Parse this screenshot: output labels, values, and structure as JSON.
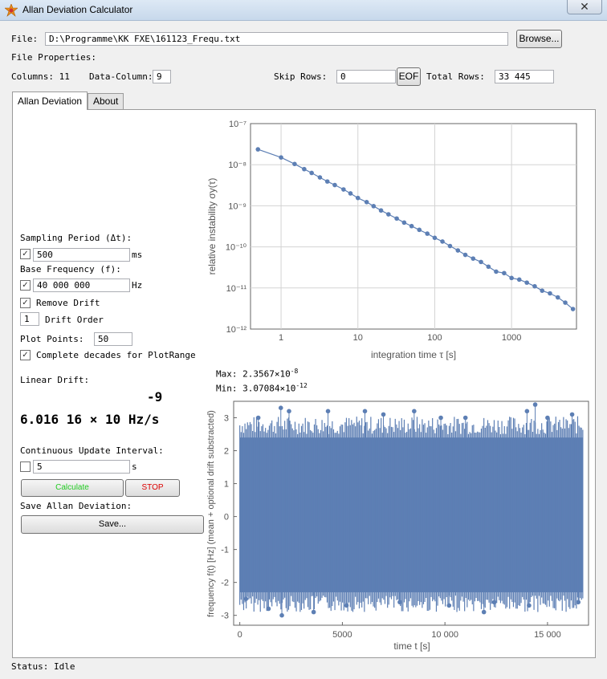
{
  "window": {
    "title": "Allan Deviation Calculator",
    "close_symbol": "✕",
    "app_icon": "gear-star-icon"
  },
  "file": {
    "label": "File:",
    "path": "D:\\Programme\\KK FXE\\161123_Frequ.txt",
    "browse_label": "Browse..."
  },
  "props": {
    "heading": "File Properties:",
    "columns_label": "Columns: 11",
    "data_column_label": "Data-Column:",
    "data_column_value": "9",
    "skip_rows_label": "Skip Rows:",
    "skip_rows_value": "0",
    "eof_label": "EOF",
    "total_rows_label": "Total Rows:",
    "total_rows_value": "33 445"
  },
  "tabs": [
    {
      "label": "Allan Deviation",
      "active": true
    },
    {
      "label": "About",
      "active": false
    }
  ],
  "controls": {
    "sampling_label": "Sampling Period (Δt):",
    "sampling_value": "500",
    "sampling_unit": "ms",
    "basefreq_label": "Base Frequency (f):",
    "basefreq_value": "40 000 000",
    "basefreq_unit": "Hz",
    "remove_drift_label": "Remove Drift",
    "drift_order_value": "1",
    "drift_order_label": "Drift Order",
    "plot_points_label": "Plot Points:",
    "plot_points_value": "50",
    "complete_decades_label": "Complete decades for PlotRange",
    "linear_drift_label": "Linear Drift:",
    "linear_drift_exponent": "-9",
    "linear_drift_value": "6.016 16 × 10 Hz/s",
    "continuous_label": "Continuous Update Interval:",
    "continuous_value": "5",
    "continuous_unit": "s",
    "calculate_label": "Calculate",
    "stop_label": "STOP",
    "save_heading": "Save Allan Deviation:",
    "save_label": "Save...",
    "sampling_checked": true,
    "basefreq_checked": true,
    "remove_drift_checked": true,
    "complete_decades_checked": true,
    "continuous_checked": false
  },
  "maxmin": {
    "max_label": "Max: 2.3567×10",
    "max_exp": "-8",
    "min_label": "Min: 3.07084×10",
    "min_exp": "-12"
  },
  "status": {
    "text": "Status: Idle"
  },
  "colors": {
    "series": "#5d7fb4",
    "calculate_text": "#22cc22",
    "stop_text": "#dd0000",
    "grid": "#d3d3d3"
  },
  "chart_data": [
    {
      "type": "scatter",
      "title": "",
      "xlabel": "integration time τ [s]",
      "ylabel": "relative instability σy(τ)",
      "x_scale": "log",
      "y_scale": "log",
      "xlim": [
        0.4,
        7000
      ],
      "ylim": [
        1e-12,
        1e-07
      ],
      "x_ticks": [
        "1",
        "10",
        "100",
        "1000"
      ],
      "y_ticks": [
        "10⁻¹²",
        "10⁻¹¹",
        "10⁻¹⁰",
        "10⁻⁹",
        "10⁻⁸",
        "10⁻⁷"
      ],
      "grid": true,
      "connected": true,
      "series": [
        {
          "x": [
            0.5,
            1,
            1.5,
            2,
            2.5,
            3.2,
            4,
            5,
            6.5,
            8,
            10,
            13,
            16,
            20,
            25,
            32,
            40,
            50,
            63,
            80,
            100,
            126,
            158,
            200,
            250,
            316,
            400,
            500,
            630,
            800,
            1000,
            1260,
            1580,
            2000,
            2500,
            3160,
            4000,
            5000,
            6300
          ],
          "y": [
            2.36e-08,
            1.5e-08,
            1.04e-08,
            7.8e-09,
            6.3e-09,
            4.9e-09,
            3.9e-09,
            3.2e-09,
            2.5e-09,
            2e-09,
            1.55e-09,
            1.23e-09,
            9.8e-10,
            7.7e-10,
            6.2e-10,
            4.9e-10,
            3.9e-10,
            3.2e-10,
            2.6e-10,
            2.1e-10,
            1.66e-10,
            1.35e-10,
            1.05e-10,
            8.2e-11,
            6.4e-11,
            5.2e-11,
            4.3e-11,
            3.3e-11,
            2.5e-11,
            2.3e-11,
            1.75e-11,
            1.6e-11,
            1.35e-11,
            1.1e-11,
            8.6e-12,
            7.4e-12,
            5.9e-12,
            4.4e-12,
            3.07e-12
          ]
        }
      ]
    },
    {
      "type": "scatter",
      "title": "",
      "xlabel": "time t [s]",
      "ylabel": "frequency f(t) [Hz] (mean + optional drift substracted)",
      "xlim": [
        -300,
        17000
      ],
      "ylim": [
        -3.3,
        3.5
      ],
      "x_ticks": [
        "0",
        "5000",
        "10 000",
        "15 000"
      ],
      "y_ticks": [
        "-3",
        "-2",
        "-1",
        "0",
        "1",
        "2",
        "3"
      ],
      "grid": false,
      "connected": true,
      "x_range": [
        0,
        16722
      ],
      "band_range": [
        -2.3,
        2.4
      ],
      "outliers": [
        {
          "x": 900,
          "y": 3.0
        },
        {
          "x": 1400,
          "y": -2.8
        },
        {
          "x": 2000,
          "y": 3.3
        },
        {
          "x": 2400,
          "y": 3.2
        },
        {
          "x": 2050,
          "y": -3.0
        },
        {
          "x": 3600,
          "y": -2.9
        },
        {
          "x": 4300,
          "y": 3.2
        },
        {
          "x": 5200,
          "y": -2.7
        },
        {
          "x": 6100,
          "y": 3.2
        },
        {
          "x": 7000,
          "y": 3.1
        },
        {
          "x": 8500,
          "y": 3.2
        },
        {
          "x": 9800,
          "y": 3.0
        },
        {
          "x": 11000,
          "y": 3.0
        },
        {
          "x": 11900,
          "y": -2.9
        },
        {
          "x": 14000,
          "y": 3.2
        },
        {
          "x": 14400,
          "y": 3.4
        },
        {
          "x": 14100,
          "y": -2.7
        },
        {
          "x": 15000,
          "y": 3.0
        },
        {
          "x": 16200,
          "y": 3.1
        },
        {
          "x": 12400,
          "y": -2.6
        },
        {
          "x": 300,
          "y": -2.5
        },
        {
          "x": 16500,
          "y": -2.6
        },
        {
          "x": 7800,
          "y": -2.6
        },
        {
          "x": 10200,
          "y": -2.7
        }
      ]
    }
  ]
}
